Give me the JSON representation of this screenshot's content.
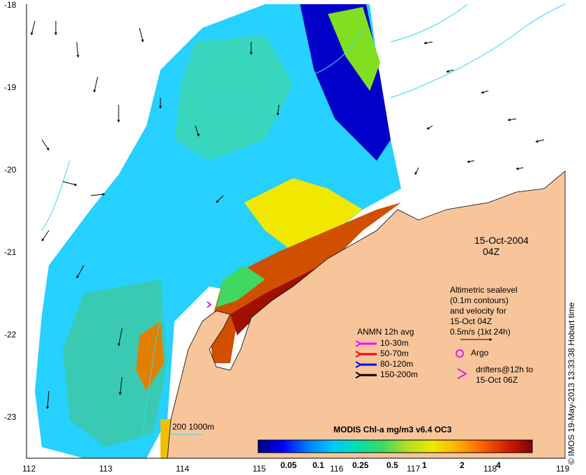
{
  "map": {
    "x_ticks": [
      "112",
      "113",
      "114",
      "115",
      "116",
      "117",
      "118",
      "119"
    ],
    "y_ticks": [
      "-18",
      "-19",
      "-20",
      "-21",
      "-22",
      "-23"
    ],
    "date": "15-Oct-2004",
    "time": "04Z",
    "colors": {
      "land": "#f8c59b",
      "contour": "#34d8e8",
      "arrow": "#000000",
      "argo": "#e020e0"
    }
  },
  "altimetry_note": {
    "line1": "Altimetric sealevel",
    "line2": "(0.1m contours)",
    "line3": "and velocity for",
    "line4": "15-Oct 04Z",
    "line5": "0.5m/s (1kt 24h)"
  },
  "anmn_legend": {
    "title": "ANMN 12h avg",
    "items": [
      {
        "label": "10-30m",
        "color": "#ff00ff"
      },
      {
        "label": "50-70m",
        "color": "#ff0000"
      },
      {
        "label": "80-120m",
        "color": "#0000ff"
      },
      {
        "label": "150-200m",
        "color": "#000000"
      }
    ]
  },
  "argo_legend": {
    "label": "Argo"
  },
  "drifters_legend": {
    "line1": "drifters@12h to",
    "line2": "15-Oct 06Z"
  },
  "bathy_label": "200  1000m",
  "colorbar": {
    "title": "MODIS Chl-a mg/m3 v6.4 OC3",
    "tick_labels": [
      "0.05",
      "0.1",
      "0.25",
      "0.5",
      "1",
      "2",
      "4"
    ],
    "colors": [
      "#000080",
      "#0000ff",
      "#0080ff",
      "#00c8ff",
      "#00e0b0",
      "#40d860",
      "#b0e020",
      "#f0e800",
      "#ffb000",
      "#ff6000",
      "#d02000",
      "#800000"
    ]
  },
  "credit": "© IMOS 19-May-2013 13:33:38 Hobart time"
}
